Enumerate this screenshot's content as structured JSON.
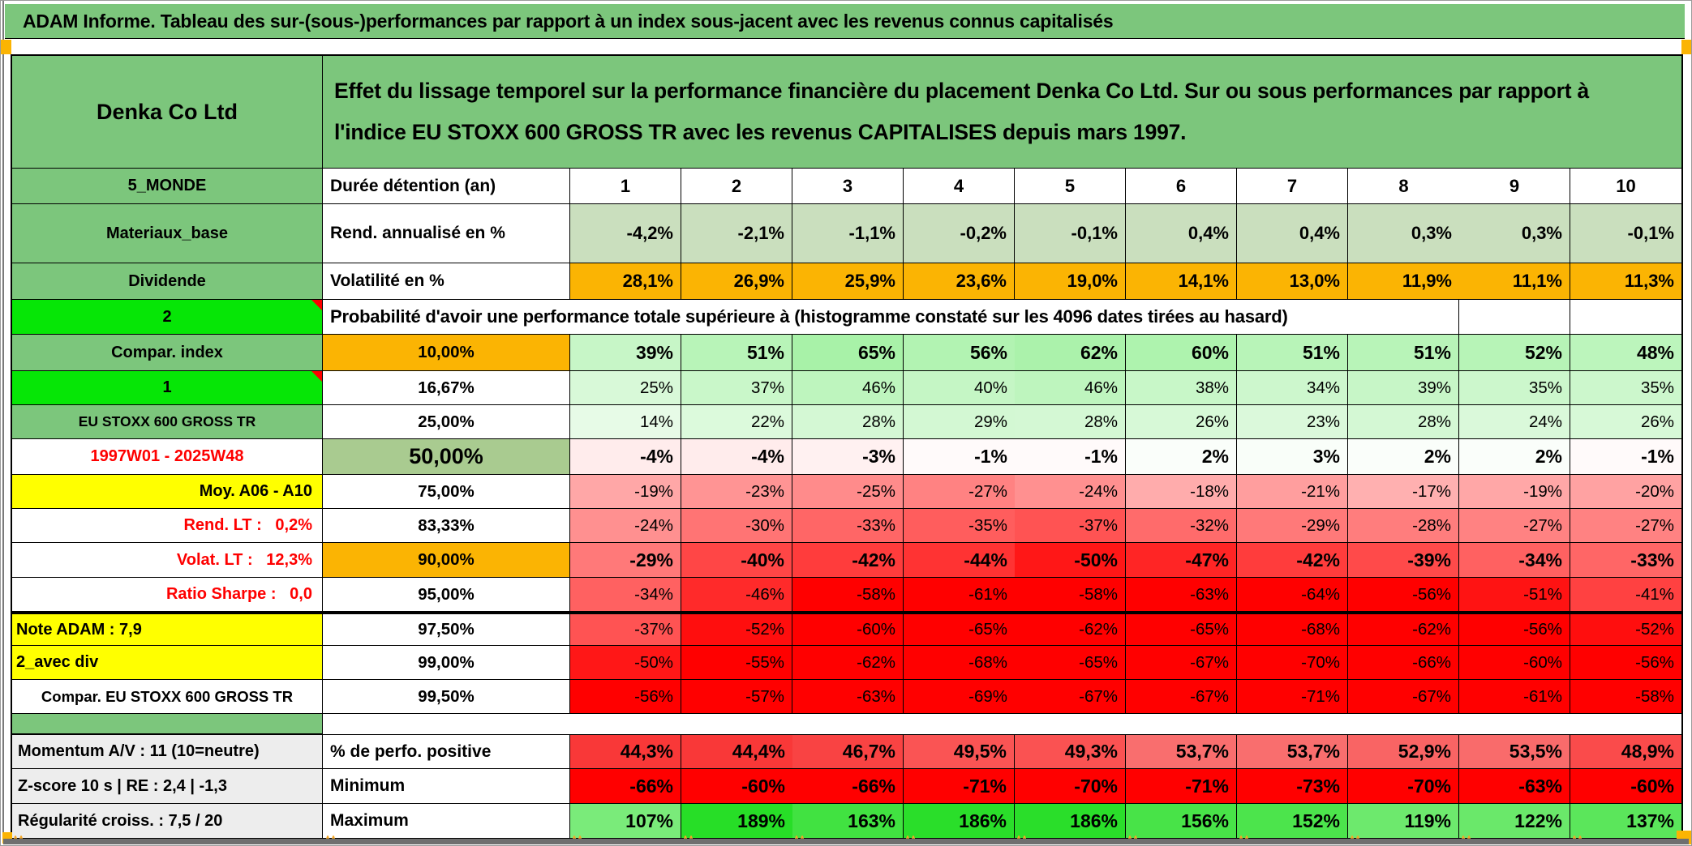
{
  "window": {
    "title": "ADAM Informe. Tableau des sur-(sous-)performances par rapport à un index sous-jacent avec les revenus connus capitalisés"
  },
  "header": {
    "company": "Denka Co Ltd",
    "desc_line1": "Effet du lissage temporel sur la performance financière du placement Denka Co Ltd. Sur ou sous performances par rapport à",
    "desc_line2": "l'indice EU STOXX 600 GROSS TR avec les revenus CAPITALISES depuis mars 1997."
  },
  "colors": {
    "green": "#7CC67C",
    "bright_green": "#06E606",
    "orange": "#FBB403",
    "yellow": "#FFFF00",
    "sage": "#A9CB90",
    "gray_label": "#EDEDED",
    "red_text": "#FE0000",
    "flat_green_cells": "#CADFBE"
  },
  "columns_row": {
    "label": "5_MONDE",
    "metric": "Durée détention (an)",
    "columns": [
      "1",
      "2",
      "3",
      "4",
      "5",
      "6",
      "7",
      "8",
      "9",
      "10"
    ]
  },
  "rend_row": {
    "label": "Materiaux_base",
    "metric": "Rend. annualisé en %",
    "values": [
      "-4,2%",
      "-2,1%",
      "-1,1%",
      "-0,2%",
      "-0,1%",
      "0,4%",
      "0,4%",
      "0,3%",
      "0,3%",
      "-0,1%"
    ]
  },
  "vol_row": {
    "label": "Dividende",
    "metric": "Volatilité en %",
    "values": [
      "28,1%",
      "26,9%",
      "25,9%",
      "23,6%",
      "19,0%",
      "14,1%",
      "13,0%",
      "11,9%",
      "11,1%",
      "11,3%"
    ]
  },
  "prob_header": {
    "label": "2",
    "text": "Probabilité d'avoir une performance totale supérieure à (histogramme constaté sur les 4096 dates tirées au hasard)"
  },
  "prob_rows": [
    {
      "label": "Compar. index",
      "label_style": "green",
      "threshold": "10,00%",
      "th_style": "orange",
      "bold": true,
      "note": false,
      "values": [
        39,
        51,
        65,
        56,
        62,
        60,
        51,
        51,
        52,
        48
      ]
    },
    {
      "label": "1",
      "label_style": "bright",
      "note": true,
      "threshold": "16,67%",
      "bold": false,
      "values": [
        25,
        37,
        46,
        40,
        46,
        38,
        34,
        39,
        35,
        35
      ]
    },
    {
      "label": "EU STOXX 600 GROSS TR",
      "label_style": "green-sm",
      "threshold": "25,00%",
      "bold": false,
      "values": [
        14,
        22,
        28,
        29,
        28,
        26,
        23,
        28,
        24,
        26
      ]
    },
    {
      "label": "1997W01 - 2025W48",
      "label_style": "red-center",
      "threshold": "50,00%",
      "th_style": "sage",
      "bold": true,
      "values": [
        -4,
        -4,
        -3,
        -1,
        -1,
        2,
        3,
        2,
        2,
        -1
      ]
    },
    {
      "label": "Moy. A06 - A10",
      "label_style": "yellow-right",
      "threshold": "75,00%",
      "bold": false,
      "values": [
        -19,
        -23,
        -25,
        -27,
        -24,
        -18,
        -21,
        -17,
        -19,
        -20
      ]
    },
    {
      "label": "Rend. LT :   0,2%",
      "label_style": "red-right",
      "threshold": "83,33%",
      "bold": false,
      "values": [
        -24,
        -30,
        -33,
        -35,
        -37,
        -32,
        -29,
        -28,
        -27,
        -27
      ]
    },
    {
      "label": "Volat. LT :   12,3%",
      "label_style": "red-right",
      "threshold": "90,00%",
      "th_style": "orange",
      "bold": true,
      "values": [
        -29,
        -40,
        -42,
        -44,
        -50,
        -47,
        -42,
        -39,
        -34,
        -33
      ]
    },
    {
      "label": "Ratio Sharpe :   0,0",
      "label_style": "red-right",
      "threshold": "95,00%",
      "bold": false,
      "values": [
        -34,
        -46,
        -58,
        -61,
        -58,
        -63,
        -64,
        -56,
        -51,
        -41
      ]
    },
    {
      "label": "Note ADAM : 7,9",
      "label_style": "yellow-left",
      "threshold": "97,50%",
      "bold": false,
      "thick_top": true,
      "values": [
        -37,
        -52,
        -60,
        -65,
        -62,
        -65,
        -68,
        -62,
        -56,
        -52
      ]
    },
    {
      "label": "2_avec div",
      "label_style": "yellow-left",
      "threshold": "99,00%",
      "bold": false,
      "values": [
        -50,
        -55,
        -62,
        -68,
        -65,
        -67,
        -70,
        -66,
        -60,
        -56
      ]
    },
    {
      "label": "Compar. EU STOXX 600 GROSS TR",
      "label_style": "white-center-sm",
      "threshold": "99,50%",
      "bold": false,
      "values": [
        -56,
        -57,
        -63,
        -69,
        -67,
        -67,
        -71,
        -67,
        -61,
        -58
      ]
    }
  ],
  "bottom_rows": [
    {
      "label": "Momentum A/V : 11 (10=neutre)",
      "metric": "% de perfo. positive",
      "values": [
        "44,3%",
        "44,4%",
        "46,7%",
        "49,5%",
        "49,3%",
        "53,7%",
        "53,7%",
        "52,9%",
        "53,5%",
        "48,9%"
      ],
      "colors": [
        "#F93838",
        "#F93838",
        "#F94343",
        "#FA5454",
        "#FA5252",
        "#F96E6E",
        "#F96E6E",
        "#F96464",
        "#F96B6B",
        "#FA4B4B"
      ]
    },
    {
      "label": "Z-score 10 s | RE : 2,4 | -1,3",
      "metric": "Minimum",
      "scale": true,
      "values": [
        -66,
        -60,
        -66,
        -71,
        -70,
        -71,
        -73,
        -70,
        -63,
        -60
      ]
    },
    {
      "label": "Régularité croiss. : 7,5 / 20",
      "metric": "Maximum",
      "scale": true,
      "values": [
        107,
        189,
        163,
        186,
        186,
        156,
        152,
        119,
        122,
        137
      ]
    }
  ],
  "chart_data": {
    "type": "heatmap",
    "title": "Probabilité d'avoir une performance totale supérieure à (histogramme constaté sur les 4096 dates tirées au hasard)",
    "x": [
      1,
      2,
      3,
      4,
      5,
      6,
      7,
      8,
      9,
      10
    ],
    "xlabel": "Durée détention (an)",
    "series": [
      {
        "name": "Rend. annualisé en %",
        "values": [
          -4.2,
          -2.1,
          -1.1,
          -0.2,
          -0.1,
          0.4,
          0.4,
          0.3,
          0.3,
          -0.1
        ]
      },
      {
        "name": "Volatilité en %",
        "values": [
          28.1,
          26.9,
          25.9,
          23.6,
          19.0,
          14.1,
          13.0,
          11.9,
          11.1,
          11.3
        ]
      },
      {
        "name": "10,00%",
        "values": [
          39,
          51,
          65,
          56,
          62,
          60,
          51,
          51,
          52,
          48
        ]
      },
      {
        "name": "16,67%",
        "values": [
          25,
          37,
          46,
          40,
          46,
          38,
          34,
          39,
          35,
          35
        ]
      },
      {
        "name": "25,00%",
        "values": [
          14,
          22,
          28,
          29,
          28,
          26,
          23,
          28,
          24,
          26
        ]
      },
      {
        "name": "50,00%",
        "values": [
          -4,
          -4,
          -3,
          -1,
          -1,
          2,
          3,
          2,
          2,
          -1
        ]
      },
      {
        "name": "75,00%",
        "values": [
          -19,
          -23,
          -25,
          -27,
          -24,
          -18,
          -21,
          -17,
          -19,
          -20
        ]
      },
      {
        "name": "83,33%",
        "values": [
          -24,
          -30,
          -33,
          -35,
          -37,
          -32,
          -29,
          -28,
          -27,
          -27
        ]
      },
      {
        "name": "90,00%",
        "values": [
          -29,
          -40,
          -42,
          -44,
          -50,
          -47,
          -42,
          -39,
          -34,
          -33
        ]
      },
      {
        "name": "95,00%",
        "values": [
          -34,
          -46,
          -58,
          -61,
          -58,
          -63,
          -64,
          -56,
          -51,
          -41
        ]
      },
      {
        "name": "97,50%",
        "values": [
          -37,
          -52,
          -60,
          -65,
          -62,
          -65,
          -68,
          -62,
          -56,
          -52
        ]
      },
      {
        "name": "99,00%",
        "values": [
          -50,
          -55,
          -62,
          -68,
          -65,
          -67,
          -70,
          -66,
          -60,
          -56
        ]
      },
      {
        "name": "99,50%",
        "values": [
          -56,
          -57,
          -63,
          -69,
          -67,
          -67,
          -71,
          -67,
          -61,
          -58
        ]
      },
      {
        "name": "% de perfo. positive",
        "values": [
          44.3,
          44.4,
          46.7,
          49.5,
          49.3,
          53.7,
          53.7,
          52.9,
          53.5,
          48.9
        ]
      },
      {
        "name": "Minimum",
        "values": [
          -66,
          -60,
          -66,
          -71,
          -70,
          -71,
          -73,
          -70,
          -63,
          -60
        ]
      },
      {
        "name": "Maximum",
        "values": [
          107,
          189,
          163,
          186,
          186,
          156,
          152,
          119,
          122,
          137
        ]
      }
    ]
  }
}
